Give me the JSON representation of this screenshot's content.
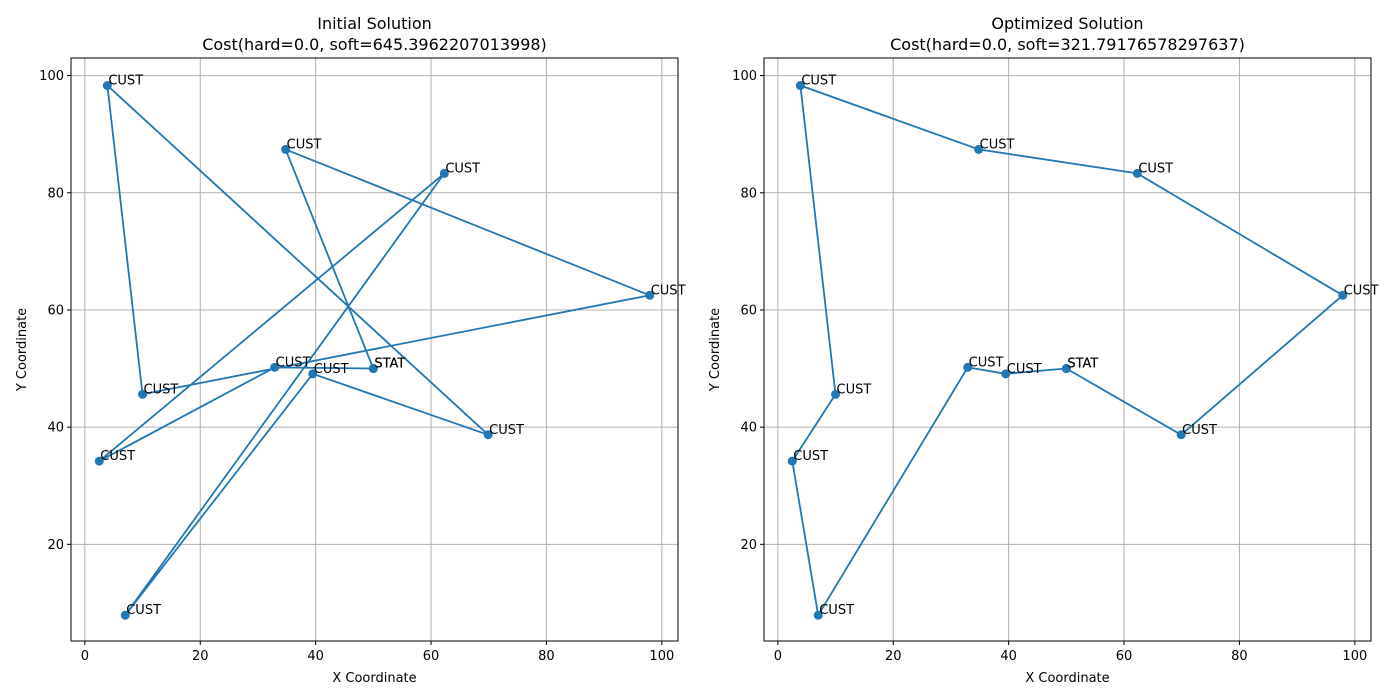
{
  "chart_data": [
    {
      "type": "line",
      "title": "Initial Solution",
      "subtitle": "Cost(hard=0.0, soft=645.3962207013998)",
      "xlabel": "X Coordinate",
      "ylabel": "Y Coordinate",
      "xlim": [
        -2.4,
        102.8
      ],
      "ylim": [
        3.5,
        103.0
      ],
      "xticks": [
        0,
        20,
        40,
        60,
        80,
        100
      ],
      "yticks": [
        20,
        40,
        60,
        80,
        100
      ],
      "grid": true,
      "color": "#1f77b4",
      "points": [
        {
          "label": "STAT",
          "x": 50.0,
          "y": 50.0
        },
        {
          "label": "CUST",
          "x": 34.8,
          "y": 87.4
        },
        {
          "label": "CUST",
          "x": 97.9,
          "y": 62.5
        },
        {
          "label": "CUST",
          "x": 10.0,
          "y": 45.6
        },
        {
          "label": "CUST",
          "x": 3.9,
          "y": 98.3
        },
        {
          "label": "CUST",
          "x": 69.9,
          "y": 38.7
        },
        {
          "label": "CUST",
          "x": 39.5,
          "y": 49.1
        },
        {
          "label": "CUST",
          "x": 7.0,
          "y": 7.9
        },
        {
          "label": "CUST",
          "x": 62.3,
          "y": 83.3
        },
        {
          "label": "CUST",
          "x": 2.5,
          "y": 34.2
        },
        {
          "label": "CUST",
          "x": 32.9,
          "y": 50.2
        },
        {
          "label": "STAT",
          "x": 50.0,
          "y": 50.0
        }
      ]
    },
    {
      "type": "line",
      "title": "Optimized Solution",
      "subtitle": "Cost(hard=0.0, soft=321.79176578297637)",
      "xlabel": "X Coordinate",
      "ylabel": "Y Coordinate",
      "xlim": [
        -2.4,
        102.8
      ],
      "ylim": [
        3.5,
        103.0
      ],
      "xticks": [
        0,
        20,
        40,
        60,
        80,
        100
      ],
      "yticks": [
        20,
        40,
        60,
        80,
        100
      ],
      "grid": true,
      "color": "#1f77b4",
      "points": [
        {
          "label": "STAT",
          "x": 50.0,
          "y": 50.0
        },
        {
          "label": "CUST",
          "x": 39.5,
          "y": 49.1
        },
        {
          "label": "CUST",
          "x": 32.9,
          "y": 50.2
        },
        {
          "label": "CUST",
          "x": 7.0,
          "y": 7.9
        },
        {
          "label": "CUST",
          "x": 2.5,
          "y": 34.2
        },
        {
          "label": "CUST",
          "x": 10.0,
          "y": 45.6
        },
        {
          "label": "CUST",
          "x": 3.9,
          "y": 98.3
        },
        {
          "label": "CUST",
          "x": 34.8,
          "y": 87.4
        },
        {
          "label": "CUST",
          "x": 62.3,
          "y": 83.3
        },
        {
          "label": "CUST",
          "x": 97.9,
          "y": 62.5
        },
        {
          "label": "CUST",
          "x": 69.9,
          "y": 38.7
        },
        {
          "label": "STAT",
          "x": 50.0,
          "y": 50.0
        }
      ]
    }
  ]
}
